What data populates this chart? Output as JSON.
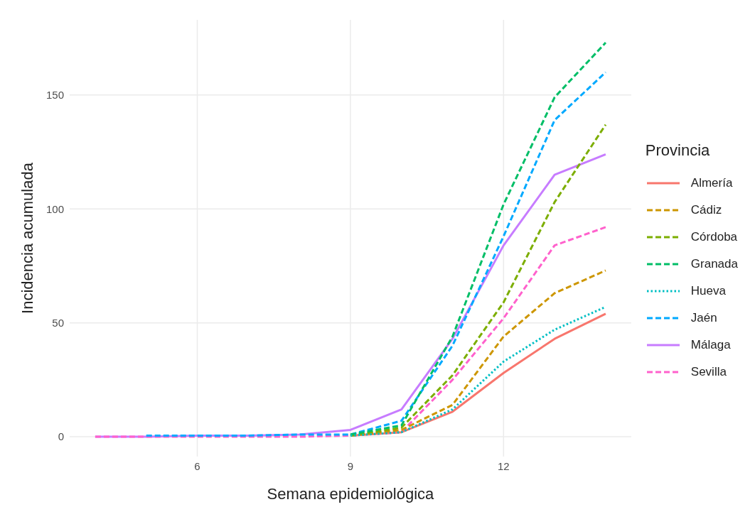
{
  "chart_data": {
    "type": "line",
    "xlabel": "Semana epidemiológica",
    "ylabel": "Incidencia acumulada",
    "legend_title": "Provincia",
    "x": [
      4,
      5,
      6,
      7,
      8,
      9,
      10,
      11,
      12,
      13,
      14
    ],
    "xlim": [
      3.5,
      14.5
    ],
    "xticks": [
      6,
      9,
      12
    ],
    "ylim": [
      -8.7,
      183
    ],
    "yticks": [
      0,
      50,
      100,
      150
    ],
    "grid": true,
    "legend": "right",
    "marker": "none",
    "series": [
      {
        "name": "Almería",
        "color": "#f8766d",
        "line_style": "solid",
        "values": [
          null,
          null,
          null,
          null,
          null,
          0.5,
          2,
          11,
          28,
          43,
          54
        ]
      },
      {
        "name": "Cádiz",
        "color": "#cd9600",
        "line_style": "dashed",
        "values": [
          null,
          null,
          null,
          null,
          null,
          0.5,
          3,
          14,
          44,
          63,
          73
        ]
      },
      {
        "name": "Córdoba",
        "color": "#7cae00",
        "line_style": "dashed",
        "values": [
          null,
          null,
          null,
          null,
          null,
          0.5,
          4,
          27,
          59,
          103,
          137
        ]
      },
      {
        "name": "Granada",
        "color": "#00be67",
        "line_style": "dashed",
        "values": [
          null,
          null,
          null,
          null,
          null,
          1,
          5,
          44,
          102,
          149,
          173
        ]
      },
      {
        "name": "Hueva",
        "color": "#00bfc4",
        "line_style": "dotted",
        "values": [
          null,
          null,
          null,
          null,
          null,
          0.5,
          2,
          12,
          33,
          47,
          57
        ]
      },
      {
        "name": "Jaén",
        "color": "#00a9ff",
        "line_style": "dashed",
        "values": [
          null,
          0.5,
          0.5,
          0.5,
          1,
          1,
          7,
          40,
          88,
          139,
          160
        ]
      },
      {
        "name": "Málaga",
        "color": "#c77cff",
        "line_style": "solid",
        "values": [
          0,
          0,
          0.5,
          0.5,
          1,
          3,
          12,
          43,
          84,
          115,
          124
        ]
      },
      {
        "name": "Sevilla",
        "color": "#ff61cc",
        "line_style": "dashed",
        "values": [
          0,
          0,
          0,
          0,
          0,
          0.5,
          2,
          25,
          52,
          84,
          92
        ]
      }
    ]
  }
}
